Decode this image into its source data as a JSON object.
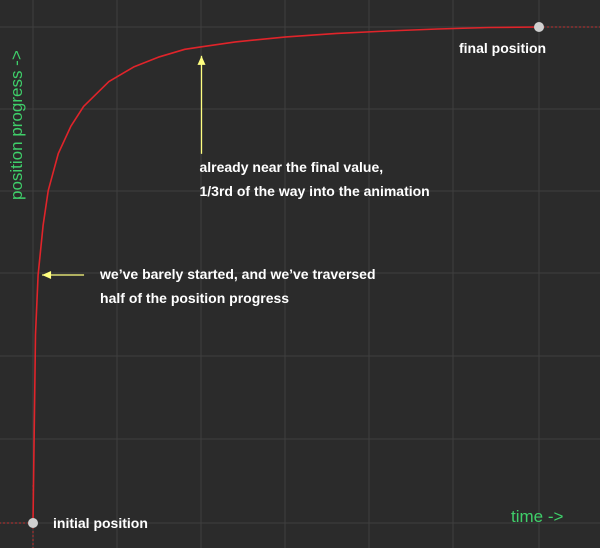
{
  "chart_data": {
    "type": "line",
    "xlabel": "time ->",
    "ylabel": "position progress ->",
    "xlim": [
      0,
      1
    ],
    "ylim": [
      0,
      1
    ],
    "grid": true,
    "series": [
      {
        "color": "#e0242a",
        "x": [
          0,
          0.005,
          0.01,
          0.02,
          0.03,
          0.05,
          0.075,
          0.1,
          0.15,
          0.2,
          0.25,
          0.3,
          0.333,
          0.4,
          0.5,
          0.6,
          0.7,
          0.8,
          0.9,
          1.0
        ],
        "y": [
          0,
          0.38,
          0.5,
          0.6,
          0.67,
          0.745,
          0.8,
          0.84,
          0.89,
          0.92,
          0.94,
          0.955,
          0.96,
          0.97,
          0.98,
          0.987,
          0.992,
          0.996,
          0.999,
          1.0
        ]
      }
    ],
    "points": [
      {
        "x": 0,
        "y": 0,
        "label": "initial position",
        "color": "#d0d0d0"
      },
      {
        "x": 1,
        "y": 1,
        "label": "final position",
        "color": "#d0d0d0"
      }
    ],
    "annotations": [
      {
        "lines": [
          "we’ve barely started, and we’ve traversed",
          "half of the position progress"
        ],
        "target": {
          "x": 0.01,
          "y": 0.5
        },
        "direction": "left",
        "color": "#ffff80"
      },
      {
        "lines": [
          "already near the final value,",
          "1/3rd of the way into the animation"
        ],
        "target": {
          "x": 0.333,
          "y": 0.96
        },
        "direction": "up",
        "color": "#ffff80"
      }
    ]
  }
}
